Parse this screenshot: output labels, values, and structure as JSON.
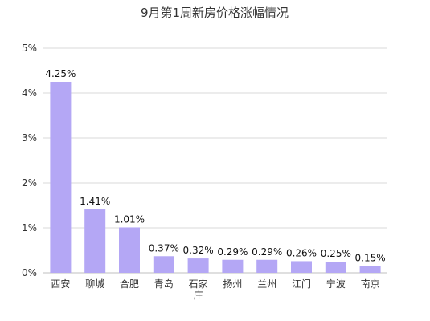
{
  "chart_data": {
    "type": "bar",
    "title": "9月第1周新房价格涨幅情况",
    "xlabel": "",
    "ylabel": "",
    "categories": [
      [
        "西安"
      ],
      [
        "聊城"
      ],
      [
        "合肥"
      ],
      [
        "青岛"
      ],
      [
        "石家",
        "庄"
      ],
      [
        "扬州"
      ],
      [
        "兰州"
      ],
      [
        "江门"
      ],
      [
        "宁波"
      ],
      [
        "南京"
      ]
    ],
    "values": [
      4.25,
      1.41,
      1.01,
      0.37,
      0.32,
      0.29,
      0.29,
      0.26,
      0.25,
      0.15
    ],
    "data_labels": [
      "4.25%",
      "1.41%",
      "1.01%",
      "0.37%",
      "0.32%",
      "0.29%",
      "0.29%",
      "0.26%",
      "0.25%",
      "0.15%"
    ],
    "ylim": [
      0,
      5
    ],
    "yticks": [
      0,
      1,
      2,
      3,
      4,
      5
    ],
    "ytick_labels": [
      "0%",
      "1%",
      "2%",
      "3%",
      "4%",
      "5%"
    ],
    "grid": true,
    "bar_color": "#b4a7f5"
  }
}
